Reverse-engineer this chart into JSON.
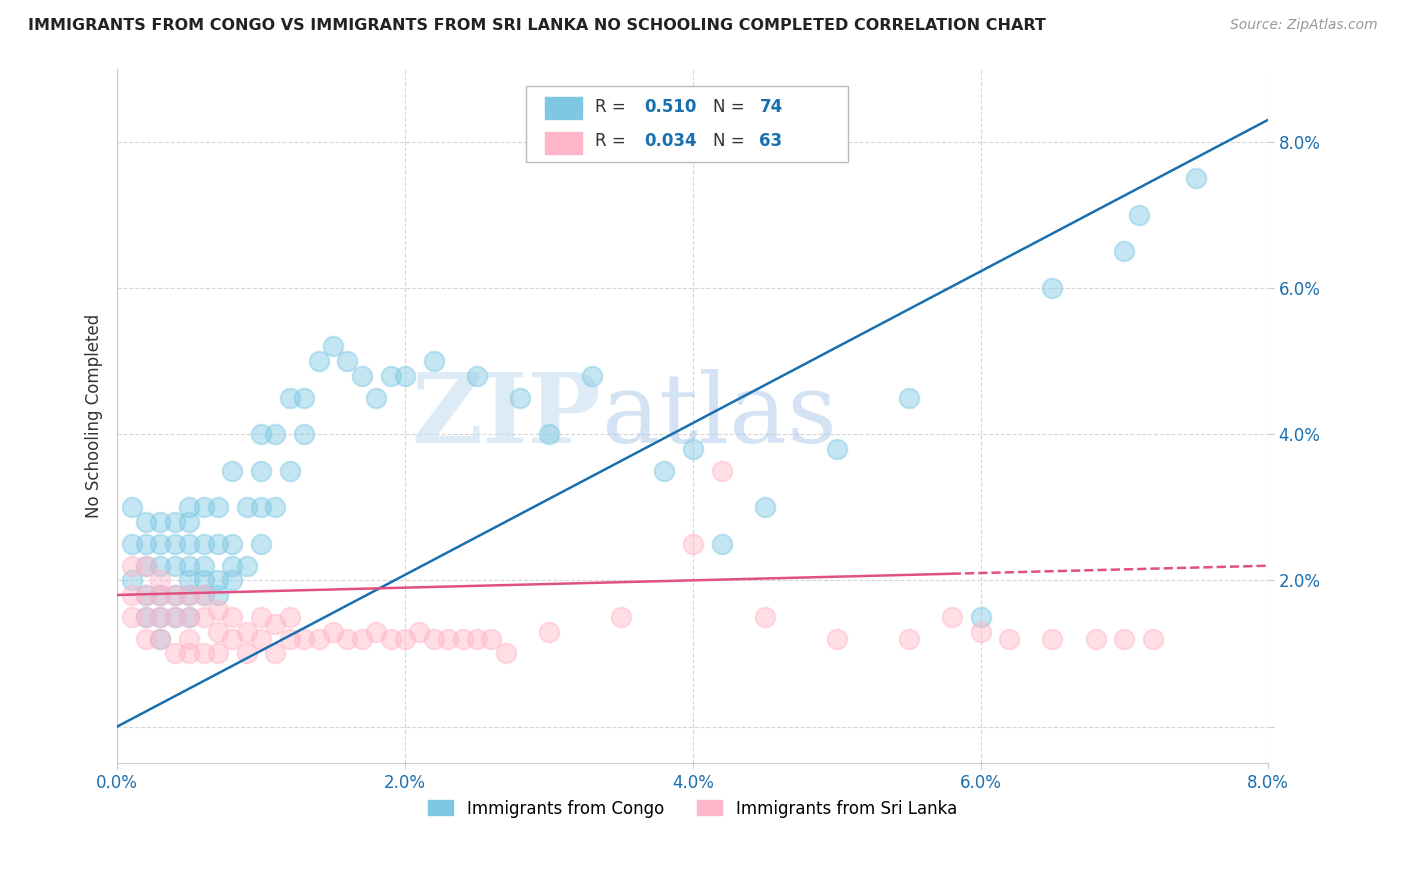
{
  "title": "IMMIGRANTS FROM CONGO VS IMMIGRANTS FROM SRI LANKA NO SCHOOLING COMPLETED CORRELATION CHART",
  "source": "Source: ZipAtlas.com",
  "ylabel": "No Schooling Completed",
  "xlim": [
    0.0,
    0.08
  ],
  "ylim": [
    -0.005,
    0.09
  ],
  "yticks": [
    0.0,
    0.02,
    0.04,
    0.06,
    0.08
  ],
  "xticks": [
    0.0,
    0.02,
    0.04,
    0.06,
    0.08
  ],
  "yticklabels": [
    "",
    "2.0%",
    "4.0%",
    "6.0%",
    "8.0%"
  ],
  "xticklabels": [
    "0.0%",
    "2.0%",
    "4.0%",
    "6.0%",
    "8.0%"
  ],
  "congo_R": 0.51,
  "congo_N": 74,
  "srilanka_R": 0.034,
  "srilanka_N": 63,
  "congo_color": "#7ec8e3",
  "srilanka_color": "#ffb6c8",
  "congo_line_color": "#1a6faf",
  "srilanka_line_color": "#e05080",
  "watermark_zip": "ZIP",
  "watermark_atlas": "atlas",
  "background_color": "#ffffff",
  "grid_color": "#cccccc",
  "legend_label_congo": "Immigrants from Congo",
  "legend_label_srilanka": "Immigrants from Sri Lanka",
  "tick_color": "#1a6faf",
  "congo_x": [
    0.001,
    0.001,
    0.001,
    0.002,
    0.002,
    0.002,
    0.002,
    0.002,
    0.003,
    0.003,
    0.003,
    0.003,
    0.003,
    0.003,
    0.004,
    0.004,
    0.004,
    0.004,
    0.004,
    0.005,
    0.005,
    0.005,
    0.005,
    0.005,
    0.005,
    0.005,
    0.006,
    0.006,
    0.006,
    0.006,
    0.006,
    0.007,
    0.007,
    0.007,
    0.007,
    0.008,
    0.008,
    0.008,
    0.008,
    0.009,
    0.009,
    0.01,
    0.01,
    0.01,
    0.01,
    0.011,
    0.011,
    0.012,
    0.012,
    0.013,
    0.013,
    0.014,
    0.015,
    0.016,
    0.017,
    0.018,
    0.019,
    0.02,
    0.022,
    0.025,
    0.028,
    0.03,
    0.033,
    0.038,
    0.04,
    0.042,
    0.045,
    0.05,
    0.055,
    0.06,
    0.065,
    0.07,
    0.071,
    0.075
  ],
  "congo_y": [
    0.02,
    0.025,
    0.03,
    0.015,
    0.018,
    0.022,
    0.025,
    0.028,
    0.012,
    0.015,
    0.018,
    0.022,
    0.025,
    0.028,
    0.015,
    0.018,
    0.022,
    0.025,
    0.028,
    0.015,
    0.018,
    0.02,
    0.022,
    0.025,
    0.028,
    0.03,
    0.018,
    0.02,
    0.022,
    0.025,
    0.03,
    0.018,
    0.02,
    0.025,
    0.03,
    0.02,
    0.022,
    0.025,
    0.035,
    0.022,
    0.03,
    0.025,
    0.03,
    0.035,
    0.04,
    0.03,
    0.04,
    0.035,
    0.045,
    0.04,
    0.045,
    0.05,
    0.052,
    0.05,
    0.048,
    0.045,
    0.048,
    0.048,
    0.05,
    0.048,
    0.045,
    0.04,
    0.048,
    0.035,
    0.038,
    0.025,
    0.03,
    0.038,
    0.045,
    0.015,
    0.06,
    0.065,
    0.07,
    0.075
  ],
  "srilanka_x": [
    0.001,
    0.001,
    0.001,
    0.002,
    0.002,
    0.002,
    0.002,
    0.003,
    0.003,
    0.003,
    0.003,
    0.004,
    0.004,
    0.004,
    0.005,
    0.005,
    0.005,
    0.005,
    0.006,
    0.006,
    0.006,
    0.007,
    0.007,
    0.007,
    0.008,
    0.008,
    0.009,
    0.009,
    0.01,
    0.01,
    0.011,
    0.011,
    0.012,
    0.012,
    0.013,
    0.014,
    0.015,
    0.016,
    0.017,
    0.018,
    0.019,
    0.02,
    0.021,
    0.022,
    0.023,
    0.024,
    0.025,
    0.026,
    0.027,
    0.03,
    0.035,
    0.04,
    0.042,
    0.045,
    0.05,
    0.055,
    0.058,
    0.06,
    0.062,
    0.065,
    0.068,
    0.07,
    0.072
  ],
  "srilanka_y": [
    0.015,
    0.018,
    0.022,
    0.012,
    0.015,
    0.018,
    0.022,
    0.012,
    0.015,
    0.018,
    0.02,
    0.01,
    0.015,
    0.018,
    0.01,
    0.012,
    0.015,
    0.018,
    0.01,
    0.015,
    0.018,
    0.01,
    0.013,
    0.016,
    0.012,
    0.015,
    0.01,
    0.013,
    0.012,
    0.015,
    0.01,
    0.014,
    0.012,
    0.015,
    0.012,
    0.012,
    0.013,
    0.012,
    0.012,
    0.013,
    0.012,
    0.012,
    0.013,
    0.012,
    0.012,
    0.012,
    0.012,
    0.012,
    0.01,
    0.013,
    0.015,
    0.025,
    0.035,
    0.015,
    0.012,
    0.012,
    0.015,
    0.013,
    0.012,
    0.012,
    0.012,
    0.012,
    0.012
  ],
  "congo_line_x0": 0.0,
  "congo_line_y0": 0.0,
  "congo_line_x1": 0.08,
  "congo_line_y1": 0.083,
  "srilanka_line_x0": 0.0,
  "srilanka_line_y0": 0.018,
  "srilanka_line_x1": 0.08,
  "srilanka_line_y1": 0.022
}
